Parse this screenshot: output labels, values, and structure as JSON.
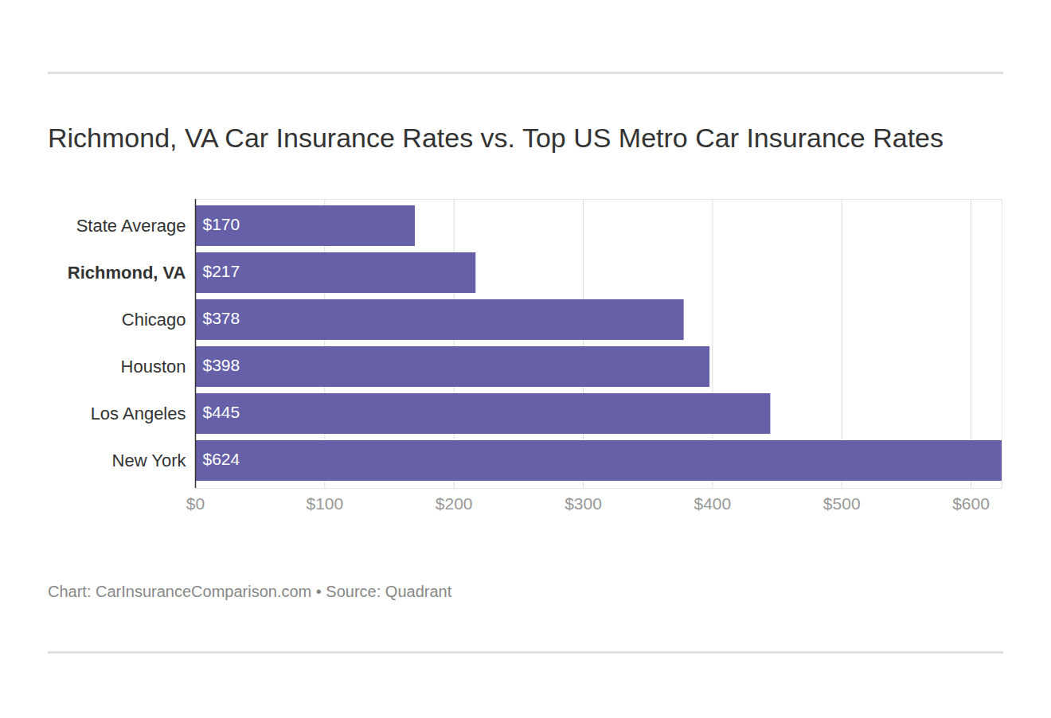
{
  "chart_data": {
    "type": "bar",
    "orientation": "horizontal",
    "title": "Richmond, VA Car Insurance Rates vs. Top US Metro Car Insurance Rates",
    "caption": "Chart: CarInsuranceComparison.com • Source: Quadrant",
    "categories": [
      "State Average",
      "Richmond, VA",
      "Chicago",
      "Houston",
      "Los Angeles",
      "New York"
    ],
    "values": [
      170,
      217,
      378,
      398,
      445,
      624
    ],
    "value_labels": [
      "$170",
      "$217",
      "$378",
      "$398",
      "$445",
      "$624"
    ],
    "color": "#6560a8",
    "xlim": [
      0,
      624
    ],
    "xticks": [
      {
        "value": 0,
        "label": "$0"
      },
      {
        "value": 100,
        "label": "$100"
      },
      {
        "value": 200,
        "label": "$200"
      },
      {
        "value": 300,
        "label": "$300"
      },
      {
        "value": 400,
        "label": "$400"
      },
      {
        "value": 500,
        "label": "$500"
      },
      {
        "value": 600,
        "label": "$600"
      }
    ],
    "grid": true,
    "data_labels": true
  }
}
